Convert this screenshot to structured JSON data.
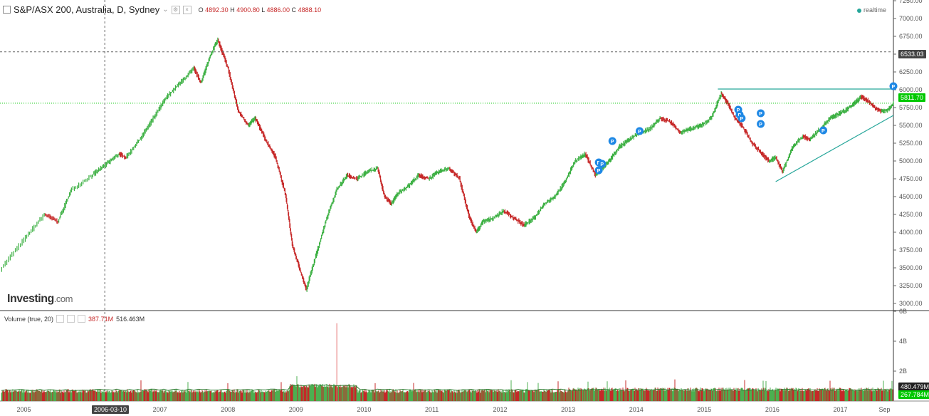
{
  "header": {
    "symbol": "S&P/ASX 200, Australia, D, Sydney",
    "o_label": "O",
    "o_value": "4892.30",
    "h_label": "H",
    "h_value": "4900.80",
    "l_label": "L",
    "l_value": "4886.00",
    "c_label": "C",
    "c_value": "4888.10"
  },
  "realtime_label": "realtime",
  "volume_header": {
    "title": "Volume (true, 20)",
    "value1": "387.71M",
    "value2": "516.463M"
  },
  "logo": {
    "brand": "Investing",
    "domain": ".com"
  },
  "crosshair_date": "2006-03-10",
  "crosshair_price": "6533.03",
  "last_price": "5811.70",
  "volume_tags": {
    "upper": "480.479M",
    "lower": "267.784M"
  },
  "colors": {
    "up": "#3cb043",
    "down": "#c62828",
    "trend": "#26a69a",
    "last": "#00c800"
  },
  "chart_data": {
    "type": "line",
    "title": "S&P/ASX 200, Australia, D, Sydney",
    "y_ticks": [
      3000,
      3250,
      3500,
      3750,
      4000,
      4250,
      4500,
      4750,
      5000,
      5250,
      5500,
      5750,
      6000,
      6250,
      6500,
      6750,
      7000,
      7250
    ],
    "ylim": [
      2900,
      7260
    ],
    "x_ticks": [
      "2005",
      "2006-03-10",
      "2007",
      "2008",
      "2009",
      "2010",
      "2011",
      "2012",
      "2013",
      "2014",
      "2015",
      "2016",
      "2017",
      "Sep"
    ],
    "xlim": [
      2004.65,
      2017.78
    ],
    "series": [
      {
        "name": "S&P/ASX 200",
        "x": [
          2004.65,
          2005.0,
          2005.3,
          2005.5,
          2005.7,
          2006.0,
          2006.2,
          2006.4,
          2006.5,
          2006.7,
          2006.9,
          2007.1,
          2007.3,
          2007.5,
          2007.6,
          2007.75,
          2007.85,
          2008.0,
          2008.15,
          2008.3,
          2008.4,
          2008.55,
          2008.7,
          2008.85,
          2008.95,
          2009.05,
          2009.15,
          2009.3,
          2009.45,
          2009.6,
          2009.75,
          2009.9,
          2010.05,
          2010.2,
          2010.3,
          2010.4,
          2010.5,
          2010.65,
          2010.8,
          2010.95,
          2011.1,
          2011.25,
          2011.4,
          2011.55,
          2011.65,
          2011.75,
          2011.9,
          2012.05,
          2012.2,
          2012.35,
          2012.5,
          2012.65,
          2012.8,
          2012.95,
          2013.1,
          2013.25,
          2013.4,
          2013.5,
          2013.6,
          2013.75,
          2013.9,
          2014.05,
          2014.2,
          2014.35,
          2014.5,
          2014.65,
          2014.8,
          2014.95,
          2015.1,
          2015.25,
          2015.35,
          2015.45,
          2015.55,
          2015.7,
          2015.85,
          2015.95,
          2016.05,
          2016.15,
          2016.3,
          2016.45,
          2016.55,
          2016.7,
          2016.85,
          2016.95,
          2017.05,
          2017.2,
          2017.3,
          2017.4,
          2017.5,
          2017.6,
          2017.7,
          2017.78
        ],
        "values": [
          3480,
          3900,
          4250,
          4150,
          4600,
          4800,
          4950,
          5100,
          5050,
          5300,
          5600,
          5900,
          6100,
          6300,
          6100,
          6500,
          6700,
          6300,
          5700,
          5500,
          5600,
          5300,
          5050,
          4500,
          3800,
          3500,
          3200,
          3700,
          4200,
          4600,
          4800,
          4750,
          4850,
          4900,
          4500,
          4400,
          4550,
          4650,
          4800,
          4750,
          4850,
          4900,
          4750,
          4200,
          4000,
          4150,
          4200,
          4300,
          4200,
          4100,
          4200,
          4400,
          4500,
          4700,
          5000,
          5100,
          4800,
          4900,
          5000,
          5200,
          5300,
          5400,
          5450,
          5600,
          5550,
          5400,
          5450,
          5500,
          5600,
          5950,
          5800,
          5600,
          5500,
          5250,
          5100,
          5000,
          5050,
          4850,
          5200,
          5350,
          5300,
          5450,
          5600,
          5650,
          5700,
          5800,
          5900,
          5850,
          5750,
          5700,
          5720,
          5811.7
        ]
      }
    ],
    "volume": {
      "y_ticks_label": [
        "2B",
        "4B",
        "6B"
      ],
      "y_ticks": [
        2,
        4,
        6
      ],
      "ylim": [
        0,
        6
      ]
    }
  }
}
